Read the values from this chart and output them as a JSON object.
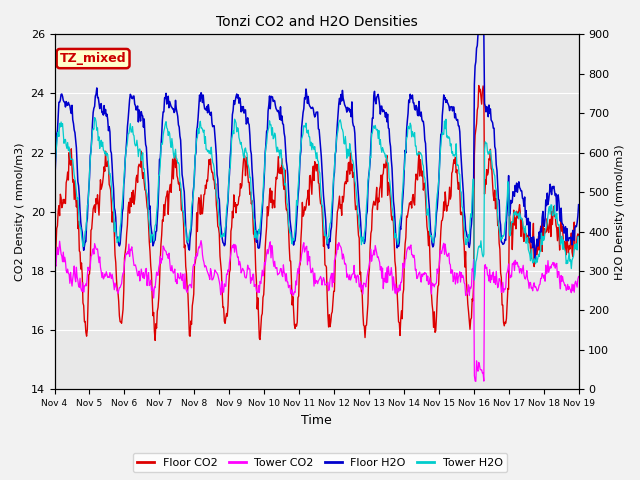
{
  "title": "Tonzi CO2 and H2O Densities",
  "xlabel": "Time",
  "ylabel_left": "CO2 Density ( mmol/m3)",
  "ylabel_right": "H2O Density (mmol/m3)",
  "ylim_left": [
    14,
    26
  ],
  "ylim_right": [
    0,
    900
  ],
  "yticks_left": [
    14,
    16,
    18,
    20,
    22,
    24,
    26
  ],
  "yticks_right": [
    0,
    100,
    200,
    300,
    400,
    500,
    600,
    700,
    800,
    900
  ],
  "xtick_labels": [
    "Nov 4",
    "Nov 5",
    "Nov 6",
    "Nov 7",
    "Nov 8",
    "Nov 9",
    "Nov 10",
    "Nov 11",
    "Nov 12",
    "Nov 13",
    "Nov 14",
    "Nov 15",
    "Nov 16",
    "Nov 17",
    "Nov 18",
    "Nov 19"
  ],
  "annotation_text": "TZ_mixed",
  "annotation_bg": "#ffffcc",
  "annotation_edgecolor": "#cc0000",
  "floor_co2_color": "#dd0000",
  "tower_co2_color": "#ff00ff",
  "floor_h2o_color": "#0000cc",
  "tower_h2o_color": "#00cccc",
  "legend_labels": [
    "Floor CO2",
    "Tower CO2",
    "Floor H2O",
    "Tower H2O"
  ],
  "plot_bg_color": "#e8e8e8",
  "fig_bg_color": "#f2f2f2",
  "n_points": 720,
  "days": 15
}
